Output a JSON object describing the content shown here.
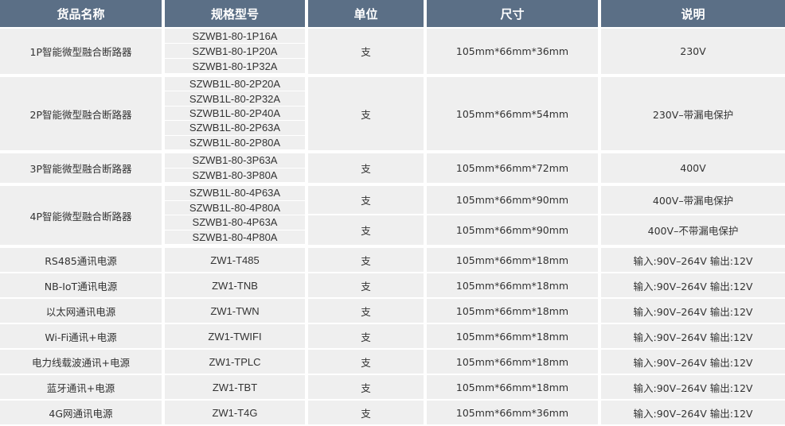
{
  "colors": {
    "header_bg": "#5b6f86",
    "cell_bg": "#efefef",
    "text": "#333333"
  },
  "headers": [
    "货品名称",
    "规格型号",
    "单位",
    "尺寸",
    "说明"
  ],
  "groups": [
    {
      "name": "1P智能微型融合断路器",
      "specs": [
        "SZWB1-80-1P16A",
        "SZWB1-80-1P20A",
        "SZWB1-80-1P32A"
      ],
      "details": [
        {
          "unit": "支",
          "size": "105mm*66mm*36mm",
          "desc": "230V"
        }
      ]
    },
    {
      "name": "2P智能微型融合断路器",
      "specs": [
        "SZWB1L-80-2P20A",
        "SZWB1L-80-2P32A",
        "SZWB1L-80-2P40A",
        "SZWB1L-80-2P63A",
        "SZWB1L-80-2P80A"
      ],
      "details": [
        {
          "unit": "支",
          "size": "105mm*66mm*54mm",
          "desc": "230V–带漏电保护"
        }
      ]
    },
    {
      "name": "3P智能微型融合断路器",
      "specs": [
        "SZWB1-80-3P63A",
        "SZWB1-80-3P80A"
      ],
      "details": [
        {
          "unit": "支",
          "size": "105mm*66mm*72mm",
          "desc": "400V"
        }
      ]
    },
    {
      "name": "4P智能微型融合断路器",
      "specs": [
        "SZWB1L-80-4P63A",
        "SZWB1L-80-4P80A",
        "SZWB1-80-4P63A",
        "SZWB1-80-4P80A"
      ],
      "details": [
        {
          "unit": "支",
          "size": "105mm*66mm*90mm",
          "desc": "400V–带漏电保护"
        },
        {
          "unit": "支",
          "size": "105mm*66mm*90mm",
          "desc": "400V–不带漏电保护"
        }
      ]
    }
  ],
  "rows": [
    {
      "name": "RS485通讯电源",
      "spec": "ZW1-T485",
      "unit": "支",
      "size": "105mm*66mm*18mm",
      "desc": "输入:90V–264V  输出:12V"
    },
    {
      "name": "NB-IoT通讯电源",
      "spec": "ZW1-TNB",
      "unit": "支",
      "size": "105mm*66mm*18mm",
      "desc": "输入:90V–264V  输出:12V"
    },
    {
      "name": "以太网通讯电源",
      "spec": "ZW1-TWN",
      "unit": "支",
      "size": "105mm*66mm*18mm",
      "desc": "输入:90V–264V  输出:12V"
    },
    {
      "name": "Wi-Fi通讯+电源",
      "spec": "ZW1-TWIFI",
      "unit": "支",
      "size": "105mm*66mm*18mm",
      "desc": "输入:90V–264V  输出:12V"
    },
    {
      "name": "电力线载波通讯+电源",
      "spec": "ZW1-TPLC",
      "unit": "支",
      "size": "105mm*66mm*18mm",
      "desc": "输入:90V–264V  输出:12V"
    },
    {
      "name": "蓝牙通讯+电源",
      "spec": "ZW1-TBT",
      "unit": "支",
      "size": "105mm*66mm*18mm",
      "desc": "输入:90V–264V  输出:12V"
    },
    {
      "name": "4G网通讯电源",
      "spec": "ZW1-T4G",
      "unit": "支",
      "size": "105mm*66mm*36mm",
      "desc": "输入:90V–264V  输出:12V"
    }
  ]
}
